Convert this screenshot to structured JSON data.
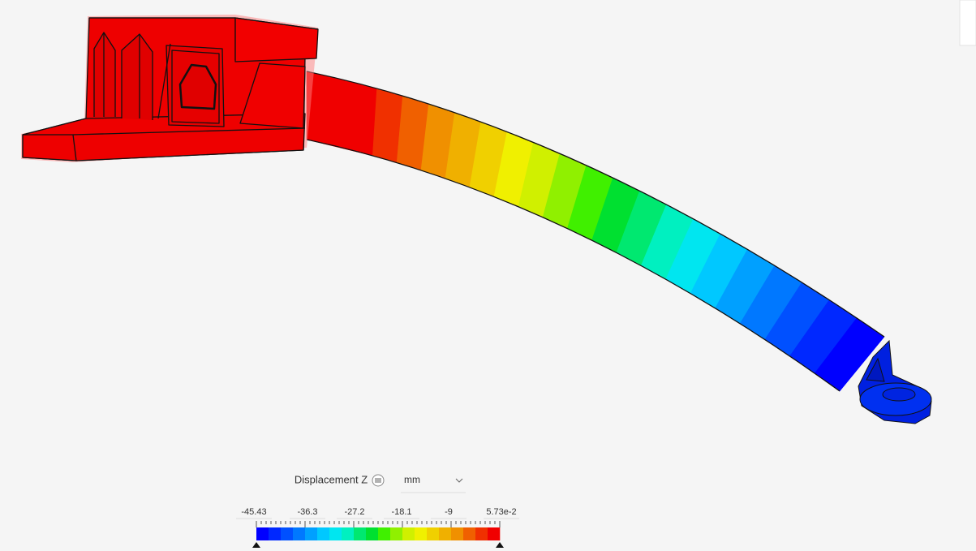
{
  "legend": {
    "title": "Displacement Z",
    "unit": "mm",
    "labels": [
      "-45.43",
      "-36.3",
      "-27.2",
      "-18.1",
      "-9",
      "5.73e-2"
    ],
    "colors": [
      "#0000ff",
      "#0028ff",
      "#0050ff",
      "#0078ff",
      "#00a0ff",
      "#00c8ff",
      "#00e6f0",
      "#00f0c0",
      "#00e870",
      "#00e030",
      "#40f000",
      "#90f000",
      "#d0f000",
      "#f0f000",
      "#f0d000",
      "#f0b000",
      "#f09000",
      "#f06000",
      "#f03000",
      "#f00000"
    ]
  }
}
